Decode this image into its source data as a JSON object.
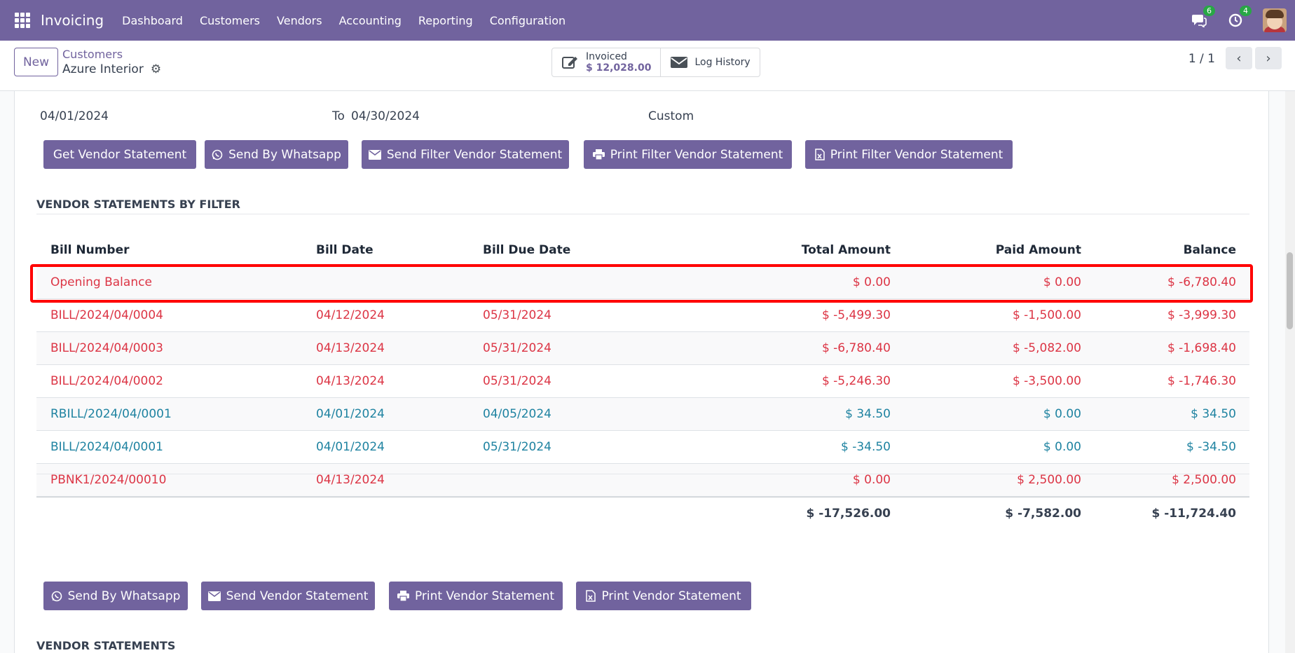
{
  "navbar": {
    "app_name": "Invoicing",
    "menu": [
      "Dashboard",
      "Customers",
      "Vendors",
      "Accounting",
      "Reporting",
      "Configuration"
    ],
    "messages_badge": "6",
    "activities_badge": "4",
    "icons": {
      "apps": "apps-grid-icon",
      "messages": "chat-icon",
      "activities": "clock-icon",
      "user": "user-avatar"
    }
  },
  "control": {
    "new_label": "New",
    "breadcrumb_parent": "Customers",
    "breadcrumb_current": "Azure Interior",
    "invoiced_label": "Invoiced",
    "invoiced_value": "$ 12,028.00",
    "log_history_label": "Log History",
    "pager": "1 / 1"
  },
  "filter": {
    "date_from": "04/01/2024",
    "to_label": "To",
    "date_to": "04/30/2024",
    "period": "Custom"
  },
  "filter_buttons": {
    "get_statement": "Get Vendor Statement",
    "send_whatsapp": "Send By Whatsapp",
    "send_filter": "Send Filter Vendor Statement",
    "print_filter_pdf": "Print Filter Vendor Statement",
    "print_filter_xls": "Print Filter Vendor Statement"
  },
  "filter_section_title": "VENDOR STATEMENTS BY FILTER",
  "table": {
    "headers": {
      "number": "Bill Number",
      "date": "Bill Date",
      "due": "Bill Due Date",
      "total": "Total Amount",
      "paid": "Paid Amount",
      "balance": "Balance"
    },
    "rows": [
      {
        "number": "Opening Balance",
        "date": "",
        "due": "",
        "total": "$ 0.00",
        "paid": "$ 0.00",
        "balance": "$ -6,780.40",
        "color": "red"
      },
      {
        "number": "BILL/2024/04/0004",
        "date": "04/12/2024",
        "due": "05/31/2024",
        "total": "$ -5,499.30",
        "paid": "$ -1,500.00",
        "balance": "$ -3,999.30",
        "color": "red"
      },
      {
        "number": "BILL/2024/04/0003",
        "date": "04/13/2024",
        "due": "05/31/2024",
        "total": "$ -6,780.40",
        "paid": "$ -5,082.00",
        "balance": "$ -1,698.40",
        "color": "red"
      },
      {
        "number": "BILL/2024/04/0002",
        "date": "04/13/2024",
        "due": "05/31/2024",
        "total": "$ -5,246.30",
        "paid": "$ -3,500.00",
        "balance": "$ -1,746.30",
        "color": "red"
      },
      {
        "number": "RBILL/2024/04/0001",
        "date": "04/01/2024",
        "due": "04/05/2024",
        "total": "$ 34.50",
        "paid": "$ 0.00",
        "balance": "$ 34.50",
        "color": "teal"
      },
      {
        "number": "BILL/2024/04/0001",
        "date": "04/01/2024",
        "due": "05/31/2024",
        "total": "$ -34.50",
        "paid": "$ 0.00",
        "balance": "$ -34.50",
        "color": "teal"
      },
      {
        "number": "PBNK1/2024/00010",
        "date": "04/13/2024",
        "due": "",
        "total": "$ 0.00",
        "paid": "$ 2,500.00",
        "balance": "$ 2,500.00",
        "color": "red"
      }
    ],
    "totals": {
      "total": "$ -17,526.00",
      "paid": "$ -7,582.00",
      "balance": "$ -11,724.40"
    }
  },
  "statement_buttons": {
    "send_whatsapp": "Send By Whatsapp",
    "send_statement": "Send Vendor Statement",
    "print_pdf": "Print Vendor Statement",
    "print_xls": "Print Vendor Statement"
  },
  "statement_section_title": "VENDOR STATEMENTS",
  "colors": {
    "brand": "#71639e",
    "red": "#dc3545",
    "teal": "#1f83a1",
    "highlight": "#ff0000"
  }
}
